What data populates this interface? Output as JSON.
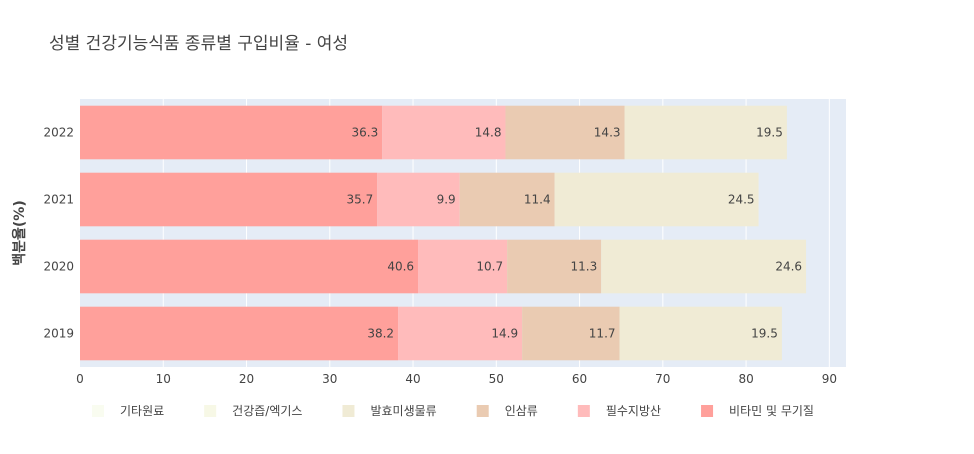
{
  "chart_data": {
    "type": "bar",
    "orientation": "horizontal",
    "stacked": true,
    "title": "성별 건강기능식품 종류별 구입비율 - 여성",
    "xlabel": "",
    "ylabel": "백분율(%)",
    "xlim": [
      0,
      92
    ],
    "xticks": [
      0,
      10,
      20,
      30,
      40,
      50,
      60,
      70,
      80,
      90
    ],
    "categories": [
      "2019",
      "2020",
      "2021",
      "2022"
    ],
    "grid": true,
    "legend_position": "bottom",
    "series": [
      {
        "name": "비타민 및 무기질",
        "color": "#FFA09B",
        "values": [
          38.2,
          40.6,
          35.7,
          36.3
        ]
      },
      {
        "name": "필수지방산",
        "color": "#FFBBBB",
        "values": [
          14.9,
          10.7,
          9.9,
          14.8
        ]
      },
      {
        "name": "인삼류",
        "color": "#EACBB2",
        "values": [
          11.7,
          11.3,
          11.4,
          14.3
        ]
      },
      {
        "name": "발효미생물류",
        "color": "#F0EBD5",
        "values": [
          19.5,
          24.6,
          24.5,
          19.5
        ]
      },
      {
        "name": "건강즙/엑기스",
        "color": "#F7F8E6",
        "values": [
          null,
          null,
          null,
          null
        ]
      },
      {
        "name": "기타원료",
        "color": "#F9FCF0",
        "values": [
          null,
          null,
          null,
          null
        ]
      }
    ],
    "legend_order": [
      "기타원료",
      "건강즙/엑기스",
      "발효미생물류",
      "인삼류",
      "필수지방산",
      "비타민 및 무기질"
    ],
    "colors": {
      "plot_bg": "#E5ECF6",
      "grid": "#FFFFFF",
      "text": "#444444",
      "title": "#444444"
    }
  }
}
